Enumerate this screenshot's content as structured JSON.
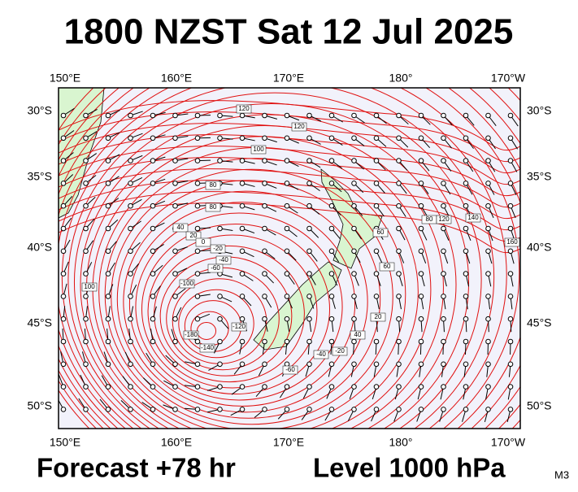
{
  "header": {
    "title": "1800 NZST Sat 12 Jul 2025"
  },
  "axes": {
    "top": [
      "150°E",
      "160°E",
      "170°E",
      "180°",
      "170°W"
    ],
    "bottom": [
      "150°E",
      "160°E",
      "170°E",
      "180°",
      "170°W"
    ],
    "left": [
      "30°S",
      "35°S",
      "40°S",
      "45°S",
      "50°S"
    ],
    "right": [
      "30°S",
      "35°S",
      "40°S",
      "45°S",
      "50°S"
    ]
  },
  "contour_labels": [
    "120",
    "100",
    "80",
    "120",
    "100",
    "40",
    "20",
    "0",
    "-20",
    "-40",
    "-60",
    "-100",
    "-140",
    "-180",
    "-120",
    "60",
    "80",
    "120",
    "140",
    "160",
    "60",
    "40",
    "20",
    "-20",
    "-40",
    "-60",
    "80"
  ],
  "footer": {
    "forecast": "Forecast +78 hr",
    "level": "Level 1000 hPa",
    "code": "M3"
  }
}
